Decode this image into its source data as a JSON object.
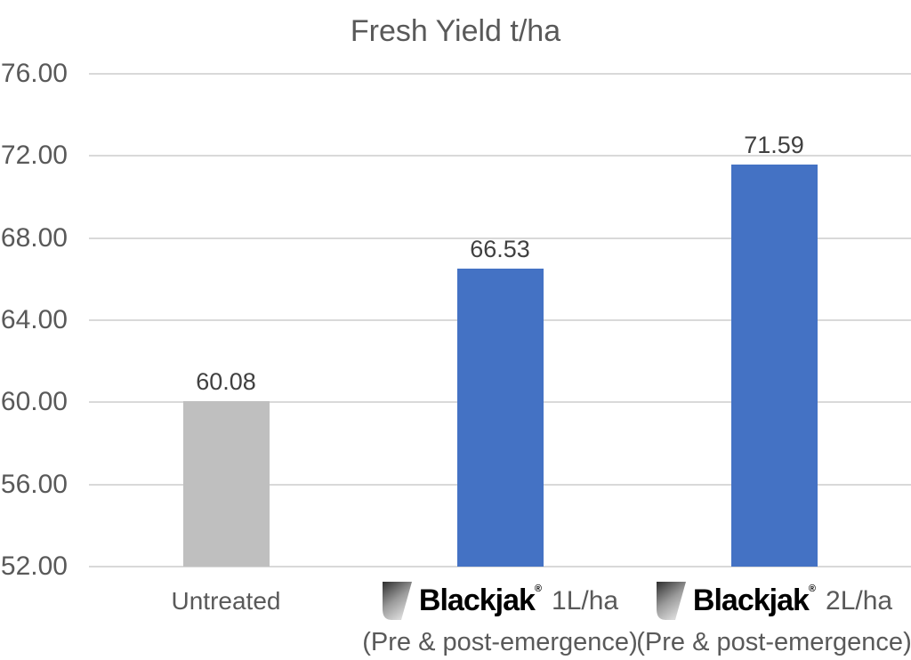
{
  "chart_data": {
    "type": "bar",
    "title": "Fresh Yield t/ha",
    "xlabel": "",
    "ylabel": "",
    "values": [
      60.08,
      66.53,
      71.59
    ],
    "bar_labels": [
      "60.08",
      "66.53",
      "71.59"
    ],
    "bar_colors": [
      "#BFBFBF",
      "#4472C4",
      "#4472C4"
    ],
    "categories": [
      {
        "label": "Untreated",
        "line2": ""
      },
      {
        "brand": "Blackjak",
        "reg": "®",
        "label": "1L/ha",
        "line2": "(Pre & post-emergence)"
      },
      {
        "brand": "Blackjak",
        "reg": "®",
        "label": "2L/ha",
        "line2": "(Pre & post-emergence)"
      }
    ],
    "ylim": [
      52,
      76
    ],
    "yticks": [
      {
        "value": 52,
        "label": "52.00"
      },
      {
        "value": 56,
        "label": "56.00"
      },
      {
        "value": 60,
        "label": "60.00"
      },
      {
        "value": 64,
        "label": "64.00"
      },
      {
        "value": 68,
        "label": "68.00"
      },
      {
        "value": 72,
        "label": "72.00"
      },
      {
        "value": 76,
        "label": "76.00"
      }
    ],
    "grid": true,
    "legend_position": "none",
    "colors": {
      "title": "#595959",
      "axis_labels": "#595959",
      "data_labels": "#404040",
      "gridline": "#D9D9D9",
      "category_labels": "#595959",
      "logo_text": "#000000",
      "logo_background": "#FFFFFF"
    }
  }
}
